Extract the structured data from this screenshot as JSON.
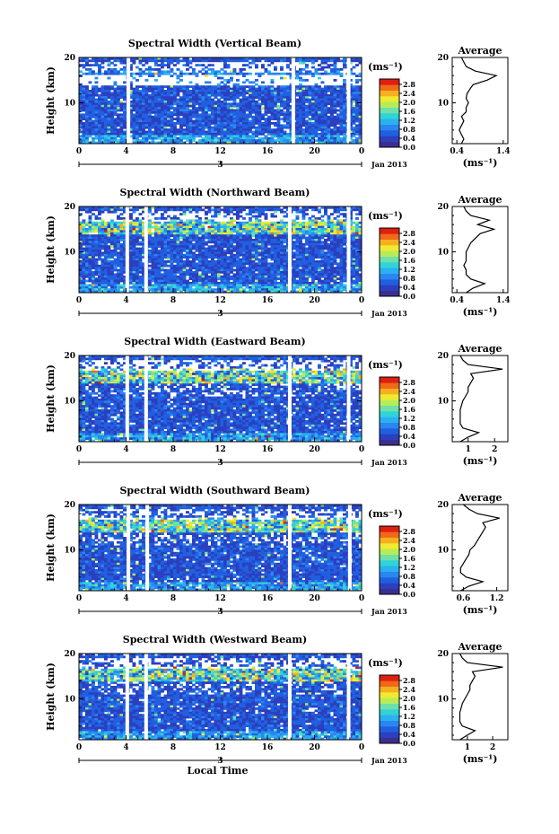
{
  "chart_data": [
    {
      "type": "heatmap",
      "title": "Spectral Width (Vertical Beam)",
      "ylabel": "Height (km)",
      "yticks": [
        "20",
        "10"
      ],
      "xticks": [
        "0",
        "4",
        "8",
        "12",
        "16",
        "20",
        "0"
      ],
      "xlim": [
        0,
        24
      ],
      "ylim": [
        1,
        20
      ],
      "date_mark": "3",
      "date_label": "Jan 2013",
      "colorbar": {
        "unit": "(ms⁻¹)",
        "ticks": [
          "2.8",
          "2.4",
          "2.0",
          "1.6",
          "1.2",
          "0.8",
          "0.4",
          "0.0"
        ]
      },
      "gaps_hours": [
        4.2,
        18.2,
        22.9
      ],
      "profile": {
        "title": "Average",
        "xticks": [
          "0.4",
          "1.4"
        ],
        "xlim": [
          0.3,
          1.5
        ],
        "xlabel": "(ms⁻¹)",
        "heights": [
          1,
          2,
          3,
          4,
          5,
          6,
          7,
          8,
          9,
          10,
          11,
          12,
          13,
          14,
          15,
          16,
          17,
          18,
          19,
          20
        ],
        "values": [
          0.5,
          0.55,
          0.5,
          0.45,
          0.5,
          0.55,
          0.5,
          0.6,
          0.6,
          0.65,
          0.6,
          0.62,
          0.68,
          0.75,
          1.05,
          1.25,
          0.8,
          0.6,
          0.55,
          0.5
        ]
      }
    },
    {
      "type": "heatmap",
      "title": "Spectral Width (Northward Beam)",
      "ylabel": "Height (km)",
      "yticks": [
        "20",
        "10"
      ],
      "xticks": [
        "0",
        "4",
        "8",
        "12",
        "16",
        "20",
        "0"
      ],
      "xlim": [
        0,
        24
      ],
      "ylim": [
        1,
        20
      ],
      "date_mark": "3",
      "date_label": "Jan 2013",
      "colorbar": {
        "unit": "(ms⁻¹)",
        "ticks": [
          "2.8",
          "2.4",
          "2.0",
          "1.6",
          "1.2",
          "0.8",
          "0.4",
          "0.0"
        ]
      },
      "gaps_hours": [
        4.1,
        5.7,
        17.9,
        22.9
      ],
      "profile": {
        "title": "Average",
        "xticks": [
          "0.4",
          "1.4"
        ],
        "xlim": [
          0.3,
          1.5
        ],
        "xlabel": "(ms⁻¹)",
        "heights": [
          1,
          2,
          3,
          4,
          5,
          6,
          7,
          8,
          9,
          10,
          11,
          12,
          13,
          14,
          15,
          16,
          17,
          18,
          19,
          20
        ],
        "values": [
          0.6,
          0.75,
          1.0,
          0.7,
          0.6,
          0.6,
          0.55,
          0.6,
          0.6,
          0.6,
          0.65,
          0.7,
          0.8,
          0.9,
          1.2,
          0.85,
          1.1,
          0.7,
          0.6,
          0.55
        ]
      }
    },
    {
      "type": "heatmap",
      "title": "Spectral Width (Eastward Beam)",
      "ylabel": "Height (km)",
      "yticks": [
        "20",
        "10"
      ],
      "xticks": [
        "0",
        "4",
        "8",
        "12",
        "16",
        "20",
        "0"
      ],
      "xlim": [
        0,
        24
      ],
      "ylim": [
        1,
        20
      ],
      "date_mark": "3",
      "date_label": "Jan 2013",
      "colorbar": {
        "unit": "(ms⁻¹)",
        "ticks": [
          "2.8",
          "2.4",
          "2.0",
          "1.6",
          "1.2",
          "0.8",
          "0.4",
          "0.0"
        ]
      },
      "gaps_hours": [
        4.1,
        5.7,
        17.9,
        22.9
      ],
      "profile": {
        "title": "Average",
        "xticks": [
          "1",
          "2"
        ],
        "xlim": [
          0.4,
          2.5
        ],
        "xlabel": "(ms⁻¹)",
        "heights": [
          1,
          2,
          3,
          4,
          5,
          6,
          7,
          8,
          9,
          10,
          11,
          12,
          13,
          14,
          15,
          16,
          17,
          18,
          19,
          20
        ],
        "values": [
          0.7,
          1.0,
          1.4,
          0.8,
          0.7,
          0.7,
          0.7,
          0.7,
          0.75,
          0.8,
          0.9,
          1.0,
          1.0,
          1.1,
          1.2,
          1.1,
          2.3,
          1.0,
          0.8,
          0.7
        ]
      }
    },
    {
      "type": "heatmap",
      "title": "Spectral Width (Southward Beam)",
      "ylabel": "Height (km)",
      "yticks": [
        "20",
        "10"
      ],
      "xticks": [
        "0",
        "4",
        "8",
        "12",
        "16",
        "20",
        "0"
      ],
      "xlim": [
        0,
        24
      ],
      "ylim": [
        1,
        20
      ],
      "date_mark": "3",
      "date_label": "Jan 2013",
      "colorbar": {
        "unit": "(ms⁻¹)",
        "ticks": [
          "2.8",
          "2.4",
          "2.0",
          "1.6",
          "1.2",
          "0.8",
          "0.4",
          "0.0"
        ]
      },
      "gaps_hours": [
        4.2,
        5.8,
        17.9,
        23.0
      ],
      "profile": {
        "title": "Average",
        "xticks": [
          "0.6",
          "1.2"
        ],
        "xlim": [
          0.4,
          1.4
        ],
        "xlabel": "(ms⁻¹)",
        "heights": [
          1,
          2,
          3,
          4,
          5,
          6,
          7,
          8,
          9,
          10,
          11,
          12,
          13,
          14,
          15,
          16,
          17,
          18,
          19,
          20
        ],
        "values": [
          0.55,
          0.7,
          0.95,
          0.65,
          0.55,
          0.55,
          0.6,
          0.65,
          0.7,
          0.72,
          0.8,
          0.85,
          0.9,
          0.95,
          1.0,
          0.95,
          1.25,
          0.85,
          0.7,
          0.6
        ]
      }
    },
    {
      "type": "heatmap",
      "title": "Spectral Width (Westward Beam)",
      "ylabel": "Height (km)",
      "yticks": [
        "20",
        "10"
      ],
      "xticks": [
        "0",
        "4",
        "8",
        "12",
        "16",
        "20",
        "0"
      ],
      "xlim": [
        0,
        24
      ],
      "ylim": [
        1,
        20
      ],
      "date_mark": "3",
      "date_label": "Jan 2013",
      "xlabel": "Local Time",
      "colorbar": {
        "unit": "(ms⁻¹)",
        "ticks": [
          "2.8",
          "2.4",
          "2.0",
          "1.6",
          "1.2",
          "0.8",
          "0.4",
          "0.0"
        ]
      },
      "gaps_hours": [
        4.1,
        5.7,
        17.9,
        22.9
      ],
      "profile": {
        "title": "Average",
        "xticks": [
          "1",
          "2"
        ],
        "xlim": [
          0.4,
          2.6
        ],
        "xlabel": "(ms⁻¹)",
        "heights": [
          1,
          2,
          3,
          4,
          5,
          6,
          7,
          8,
          9,
          10,
          11,
          12,
          13,
          14,
          15,
          16,
          17,
          18,
          19,
          20
        ],
        "values": [
          0.7,
          1.0,
          1.3,
          0.8,
          0.7,
          0.7,
          0.7,
          0.75,
          0.8,
          0.9,
          1.0,
          1.1,
          1.1,
          1.2,
          1.3,
          1.2,
          2.4,
          1.0,
          0.8,
          0.7
        ]
      }
    }
  ]
}
